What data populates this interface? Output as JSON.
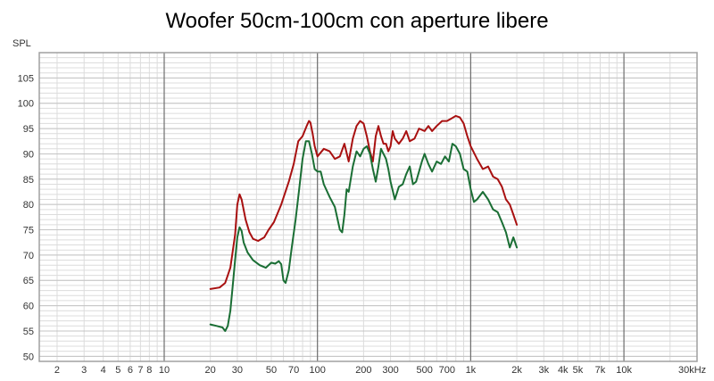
{
  "chart_data": {
    "type": "line",
    "title": "Woofer 50cm-100cm con aperture libere",
    "ylabel": "SPL",
    "xunit": "30kHz",
    "xscale": "log",
    "xlim": [
      1.53,
      30000
    ],
    "ylim": [
      49,
      110
    ],
    "grid": true,
    "legend": "none",
    "colors": {
      "frame": "#a0a0a0",
      "grid_minor": "#dcdcdc",
      "grid_major": "#6e6e6e",
      "background": "#ffffff"
    },
    "x_ticks": [
      {
        "v": 2,
        "label": "2"
      },
      {
        "v": 3,
        "label": "3"
      },
      {
        "v": 4,
        "label": "4"
      },
      {
        "v": 5,
        "label": "5"
      },
      {
        "v": 6,
        "label": "6"
      },
      {
        "v": 7,
        "label": "7"
      },
      {
        "v": 8,
        "label": "8"
      },
      {
        "v": 10,
        "label": "10"
      },
      {
        "v": 20,
        "label": "20"
      },
      {
        "v": 30,
        "label": "30"
      },
      {
        "v": 50,
        "label": "50"
      },
      {
        "v": 70,
        "label": "70"
      },
      {
        "v": 100,
        "label": "100"
      },
      {
        "v": 200,
        "label": "200"
      },
      {
        "v": 300,
        "label": "300"
      },
      {
        "v": 500,
        "label": "500"
      },
      {
        "v": 700,
        "label": "700"
      },
      {
        "v": 1000,
        "label": "1k"
      },
      {
        "v": 2000,
        "label": "2k"
      },
      {
        "v": 3000,
        "label": "3k"
      },
      {
        "v": 4000,
        "label": "4k"
      },
      {
        "v": 5000,
        "label": "5k"
      },
      {
        "v": 7000,
        "label": "7k"
      },
      {
        "v": 10000,
        "label": "10k"
      }
    ],
    "y_ticks": [
      50,
      55,
      60,
      65,
      70,
      75,
      80,
      85,
      90,
      95,
      100,
      105
    ],
    "series": [
      {
        "color": "#a81010",
        "x": [
          20,
          23,
          25,
          27,
          29,
          30,
          31,
          32,
          34,
          36,
          38,
          41,
          45,
          48,
          52,
          58,
          65,
          70,
          75,
          80,
          85,
          88,
          90,
          93,
          96,
          100,
          110,
          120,
          130,
          140,
          150,
          160,
          170,
          180,
          190,
          200,
          210,
          220,
          230,
          240,
          250,
          260,
          270,
          280,
          290,
          300,
          310,
          320,
          340,
          360,
          380,
          400,
          430,
          460,
          500,
          530,
          560,
          600,
          650,
          700,
          750,
          800,
          850,
          900,
          950,
          1000,
          1100,
          1200,
          1300,
          1400,
          1500,
          1600,
          1700,
          1800,
          1900,
          2000
        ],
        "values": [
          63.3,
          63.6,
          64.5,
          67.5,
          74.0,
          80.0,
          82.0,
          81.0,
          77.0,
          74.5,
          73.2,
          72.8,
          73.5,
          75.0,
          76.5,
          80.0,
          84.5,
          88.0,
          92.5,
          93.5,
          95.5,
          96.5,
          96.2,
          94.0,
          91.5,
          89.5,
          91.0,
          90.5,
          89.0,
          89.5,
          92.0,
          88.5,
          93.0,
          95.5,
          96.5,
          96.0,
          93.5,
          90.5,
          88.5,
          93.5,
          95.5,
          93.5,
          92.0,
          92.0,
          90.5,
          91.5,
          94.5,
          93.0,
          92.0,
          93.0,
          94.5,
          92.5,
          93.0,
          95.0,
          94.5,
          95.5,
          94.5,
          95.5,
          96.5,
          96.5,
          97.0,
          97.5,
          97.2,
          96.0,
          93.5,
          91.5,
          89.0,
          87.0,
          87.5,
          85.5,
          85.0,
          83.5,
          81.0,
          80.0,
          78.0,
          76.0
        ]
      },
      {
        "color": "#1a6e34",
        "x": [
          20,
          22,
          24,
          25,
          26,
          27,
          28,
          29,
          30,
          31,
          32,
          33,
          35,
          38,
          42,
          46,
          50,
          53,
          56,
          58,
          60,
          62,
          65,
          68,
          72,
          76,
          80,
          84,
          88,
          92,
          96,
          100,
          105,
          110,
          120,
          130,
          140,
          145,
          150,
          155,
          160,
          170,
          180,
          190,
          200,
          210,
          220,
          230,
          240,
          250,
          260,
          270,
          280,
          290,
          300,
          320,
          340,
          360,
          380,
          400,
          420,
          440,
          460,
          480,
          500,
          530,
          560,
          600,
          640,
          680,
          720,
          760,
          800,
          850,
          900,
          950,
          1000,
          1050,
          1100,
          1200,
          1300,
          1400,
          1500,
          1600,
          1700,
          1800,
          1900,
          2000
        ],
        "values": [
          56.3,
          56.0,
          55.7,
          55.0,
          56.0,
          59.0,
          64.0,
          69.0,
          73.5,
          75.5,
          74.8,
          72.5,
          70.5,
          69.0,
          68.0,
          67.5,
          68.5,
          68.3,
          68.8,
          68.2,
          65.0,
          64.5,
          67.0,
          71.5,
          77.0,
          83.0,
          89.0,
          92.5,
          92.5,
          90.0,
          87.0,
          86.5,
          86.5,
          84.0,
          81.5,
          79.5,
          75.0,
          74.5,
          78.0,
          83.0,
          82.5,
          87.5,
          90.5,
          89.5,
          91.0,
          91.5,
          90.0,
          87.0,
          84.5,
          87.5,
          91.0,
          90.0,
          89.0,
          87.0,
          84.5,
          81.0,
          83.5,
          84.0,
          86.0,
          87.5,
          84.0,
          84.5,
          86.5,
          88.5,
          90.0,
          88.0,
          86.5,
          88.5,
          88.0,
          89.5,
          88.5,
          92.0,
          91.5,
          90.0,
          87.0,
          86.5,
          83.0,
          80.5,
          81.0,
          82.5,
          81.0,
          79.0,
          78.5,
          76.5,
          74.5,
          71.5,
          73.5,
          71.5
        ]
      }
    ]
  }
}
